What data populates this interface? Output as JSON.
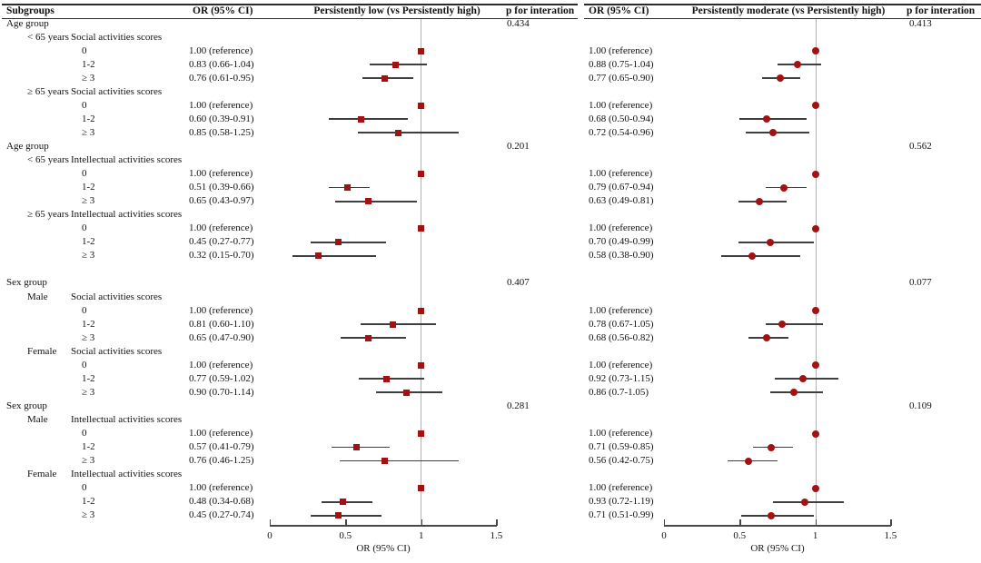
{
  "header": {
    "subgroups": "Subgroups",
    "or_ci": "OR (95% CI)",
    "p_for_interaction": "p for interation"
  },
  "colors": {
    "marker": "#a31212",
    "ci_line": "#3f3f3f",
    "reference_line": "#b3b3b3",
    "axis_line": "#474747"
  },
  "chart_data": {
    "type": "scatter",
    "variant": "forest_plot",
    "xlabel": "OR (95% CI)",
    "xlim": [
      0,
      1.5
    ],
    "xticks": [
      "0",
      "0.5",
      "1",
      "1.5"
    ],
    "reference_value": 1,
    "panels": [
      {
        "title": "Persistently low (vs Persistently high)",
        "marker": "square"
      },
      {
        "title": "Persistently moderate (vs Persistently high)",
        "marker": "circle"
      }
    ],
    "rows": [
      {
        "group": "Age group",
        "p_left": "0.434",
        "p_right": "0.413"
      },
      {
        "sub": "< 65 years",
        "activity": "Social activities scores"
      },
      {
        "level": "0",
        "or_left": "1.00 (reference)",
        "left": {
          "est": 1.0
        },
        "or_right": "1.00 (reference)",
        "right": {
          "est": 1.0
        }
      },
      {
        "level": "1-2",
        "or_left": "0.83 (0.66-1.04)",
        "left": {
          "est": 0.83,
          "lo": 0.66,
          "hi": 1.04
        },
        "or_right": "0.88 (0.75-1.04)",
        "right": {
          "est": 0.88,
          "lo": 0.75,
          "hi": 1.04
        }
      },
      {
        "level": "≥ 3",
        "or_left": "0.76 (0.61-0.95)",
        "left": {
          "est": 0.76,
          "lo": 0.61,
          "hi": 0.95
        },
        "or_right": "0.77 (0.65-0.90)",
        "right": {
          "est": 0.77,
          "lo": 0.65,
          "hi": 0.9
        }
      },
      {
        "sub": "≥ 65 years",
        "activity": "Social activities scores"
      },
      {
        "level": "0",
        "or_left": "1.00 (reference)",
        "left": {
          "est": 1.0
        },
        "or_right": "1.00 (reference)",
        "right": {
          "est": 1.0
        }
      },
      {
        "level": "1-2",
        "or_left": "0.60 (0.39-0.91)",
        "left": {
          "est": 0.6,
          "lo": 0.39,
          "hi": 0.91
        },
        "or_right": "0.68 (0.50-0.94)",
        "right": {
          "est": 0.68,
          "lo": 0.5,
          "hi": 0.94
        }
      },
      {
        "level": "≥ 3",
        "or_left": "0.85 (0.58-1.25)",
        "left": {
          "est": 0.85,
          "lo": 0.58,
          "hi": 1.25
        },
        "or_right": "0.72 (0.54-0.96)",
        "right": {
          "est": 0.72,
          "lo": 0.54,
          "hi": 0.96
        }
      },
      {
        "group": "Age group",
        "p_left": "0.201",
        "p_right": "0.562"
      },
      {
        "sub": "< 65 years",
        "activity": "Intellectual activities scores"
      },
      {
        "level": "0",
        "or_left": "1.00 (reference)",
        "left": {
          "est": 1.0
        },
        "or_right": "1.00 (reference)",
        "right": {
          "est": 1.0
        }
      },
      {
        "level": "1-2",
        "or_left": "0.51 (0.39-0.66)",
        "left": {
          "est": 0.51,
          "lo": 0.39,
          "hi": 0.66
        },
        "or_right": "0.79 (0.67-0.94)",
        "right": {
          "est": 0.79,
          "lo": 0.67,
          "hi": 0.94
        }
      },
      {
        "level": "≥ 3",
        "or_left": "0.65 (0.43-0.97)",
        "left": {
          "est": 0.65,
          "lo": 0.43,
          "hi": 0.97
        },
        "or_right": "0.63 (0.49-0.81)",
        "right": {
          "est": 0.63,
          "lo": 0.49,
          "hi": 0.81
        }
      },
      {
        "sub": "≥ 65 years",
        "activity": "Intellectual activities scores"
      },
      {
        "level": "0",
        "or_left": "1.00 (reference)",
        "left": {
          "est": 1.0
        },
        "or_right": "1.00 (reference)",
        "right": {
          "est": 1.0
        }
      },
      {
        "level": "1-2",
        "or_left": "0.45 (0.27-0.77)",
        "left": {
          "est": 0.45,
          "lo": 0.27,
          "hi": 0.77
        },
        "or_right": "0.70 (0.49-0.99)",
        "right": {
          "est": 0.7,
          "lo": 0.49,
          "hi": 0.99
        }
      },
      {
        "level": "≥ 3",
        "or_left": "0.32 (0.15-0.70)",
        "left": {
          "est": 0.32,
          "lo": 0.15,
          "hi": 0.7
        },
        "or_right": "0.58 (0.38-0.90)",
        "right": {
          "est": 0.58,
          "lo": 0.38,
          "hi": 0.9
        }
      },
      {
        "blank": true
      },
      {
        "group": "Sex group",
        "p_left": "0.407",
        "p_right": "0.077"
      },
      {
        "sub": "Male",
        "activity": "Social activities scores"
      },
      {
        "level": "0",
        "or_left": "1.00 (reference)",
        "left": {
          "est": 1.0
        },
        "or_right": "1.00 (reference)",
        "right": {
          "est": 1.0
        }
      },
      {
        "level": "1-2",
        "or_left": "0.81 (0.60-1.10)",
        "left": {
          "est": 0.81,
          "lo": 0.6,
          "hi": 1.1
        },
        "or_right": "0.78 (0.67-1.05)",
        "right": {
          "est": 0.78,
          "lo": 0.67,
          "hi": 1.05
        }
      },
      {
        "level": "≥ 3",
        "or_left": "0.65 (0.47-0.90)",
        "left": {
          "est": 0.65,
          "lo": 0.47,
          "hi": 0.9
        },
        "or_right": "0.68 (0.56-0.82)",
        "right": {
          "est": 0.68,
          "lo": 0.56,
          "hi": 0.82
        }
      },
      {
        "sub": "Female",
        "activity": "Social activities scores"
      },
      {
        "level": "0",
        "or_left": "1.00 (reference)",
        "left": {
          "est": 1.0
        },
        "or_right": "1.00 (reference)",
        "right": {
          "est": 1.0
        }
      },
      {
        "level": "1-2",
        "or_left": "0.77 (0.59-1.02)",
        "left": {
          "est": 0.77,
          "lo": 0.59,
          "hi": 1.02
        },
        "or_right": "0.92 (0.73-1.15)",
        "right": {
          "est": 0.92,
          "lo": 0.73,
          "hi": 1.15
        }
      },
      {
        "level": "≥ 3",
        "or_left": "0.90 (0.70-1.14)",
        "left": {
          "est": 0.9,
          "lo": 0.7,
          "hi": 1.14
        },
        "or_right": "0.86 (0.7-1.05)",
        "right": {
          "est": 0.86,
          "lo": 0.7,
          "hi": 1.05
        }
      },
      {
        "group": "Sex group",
        "p_left": "0.281",
        "p_right": "0.109"
      },
      {
        "sub": "Male",
        "activity": "Intellectual activities scores"
      },
      {
        "level": "0",
        "or_left": "1.00 (reference)",
        "left": {
          "est": 1.0
        },
        "or_right": "1.00 (reference)",
        "right": {
          "est": 1.0
        }
      },
      {
        "level": "1-2",
        "or_left": "0.57 (0.41-0.79)",
        "left": {
          "est": 0.57,
          "lo": 0.41,
          "hi": 0.79
        },
        "or_right": "0.71 (0.59-0.85)",
        "right": {
          "est": 0.71,
          "lo": 0.59,
          "hi": 0.85
        }
      },
      {
        "level": "≥ 3",
        "or_left": "0.76 (0.46-1.25)",
        "left": {
          "est": 0.76,
          "lo": 0.46,
          "hi": 1.25
        },
        "or_right": "0.56 (0.42-0.75)",
        "right": {
          "est": 0.56,
          "lo": 0.42,
          "hi": 0.75
        }
      },
      {
        "sub": "Female",
        "activity": "Intellectual activities scores"
      },
      {
        "level": "0",
        "or_left": "1.00 (reference)",
        "left": {
          "est": 1.0
        },
        "or_right": "1.00 (reference)",
        "right": {
          "est": 1.0
        }
      },
      {
        "level": "1-2",
        "or_left": "0.48 (0.34-0.68)",
        "left": {
          "est": 0.48,
          "lo": 0.34,
          "hi": 0.68
        },
        "or_right": "0.93 (0.72-1.19)",
        "right": {
          "est": 0.93,
          "lo": 0.72,
          "hi": 1.19
        }
      },
      {
        "level": "≥ 3",
        "or_left": "0.45 (0.27-0.74)",
        "left": {
          "est": 0.45,
          "lo": 0.27,
          "hi": 0.74
        },
        "or_right": "0.71 (0.51-0.99)",
        "right": {
          "est": 0.71,
          "lo": 0.51,
          "hi": 0.99
        }
      }
    ]
  }
}
